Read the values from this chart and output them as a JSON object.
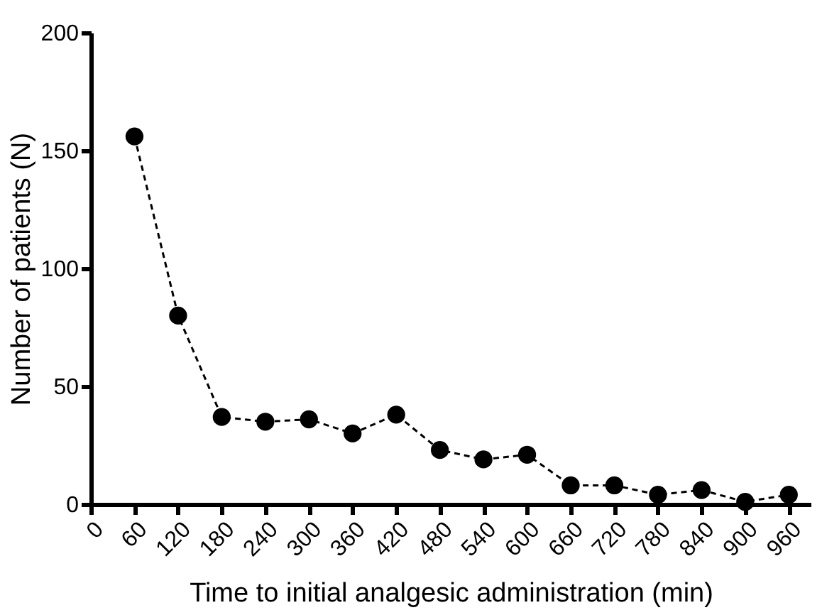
{
  "chart_data": {
    "type": "line",
    "xlabel": "Time to initial analgesic administration (min)",
    "ylabel": "Number of patients (N)",
    "x": [
      60,
      120,
      180,
      240,
      300,
      360,
      420,
      480,
      540,
      600,
      660,
      720,
      780,
      840,
      900,
      960
    ],
    "series": [
      {
        "color": "#000000",
        "values": [
          156,
          80,
          37,
          35,
          36,
          30,
          38,
          23,
          19,
          21,
          8,
          8,
          4,
          6,
          1,
          4
        ]
      }
    ],
    "xlim": [
      0,
      990
    ],
    "xticks": [
      0,
      60,
      120,
      180,
      240,
      300,
      360,
      420,
      480,
      540,
      600,
      660,
      720,
      780,
      840,
      900,
      960
    ],
    "ylim": [
      0,
      200
    ],
    "yticks": [
      0,
      50,
      100,
      150,
      200
    ],
    "grid": false,
    "marker": "circle",
    "line_style": "dashed"
  }
}
